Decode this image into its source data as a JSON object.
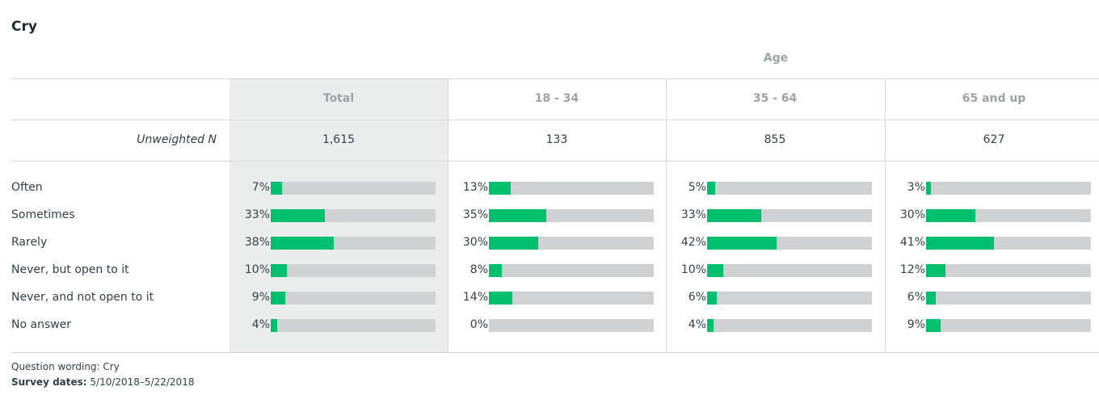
{
  "title": "Cry",
  "group_label": "Age",
  "n_label": "Unweighted N",
  "footer": {
    "wording_label": "Question wording:",
    "wording_value": "Cry",
    "dates_label": "Survey dates:",
    "dates_value": "5/10/2018–5/22/2018"
  },
  "colors": {
    "bar": "#00bf6f",
    "track": "#d0d1d3",
    "total_bg": "#ebedec"
  },
  "chart_data": {
    "type": "bar",
    "title": "Cry",
    "categories": [
      "Often",
      "Sometimes",
      "Rarely",
      "Never, but open to it",
      "Never, and not open to it",
      "No answer"
    ],
    "series": [
      {
        "name": "Total",
        "n": "1,615",
        "values": [
          7,
          33,
          38,
          10,
          9,
          4
        ]
      },
      {
        "name": "18 - 34",
        "n": "133",
        "values": [
          13,
          35,
          30,
          8,
          14,
          0
        ]
      },
      {
        "name": "35 - 64",
        "n": "855",
        "values": [
          5,
          33,
          42,
          10,
          6,
          4
        ]
      },
      {
        "name": "65 and up",
        "n": "627",
        "values": [
          3,
          30,
          41,
          12,
          6,
          9
        ]
      }
    ],
    "unit": "%",
    "ylim": [
      0,
      100
    ]
  }
}
